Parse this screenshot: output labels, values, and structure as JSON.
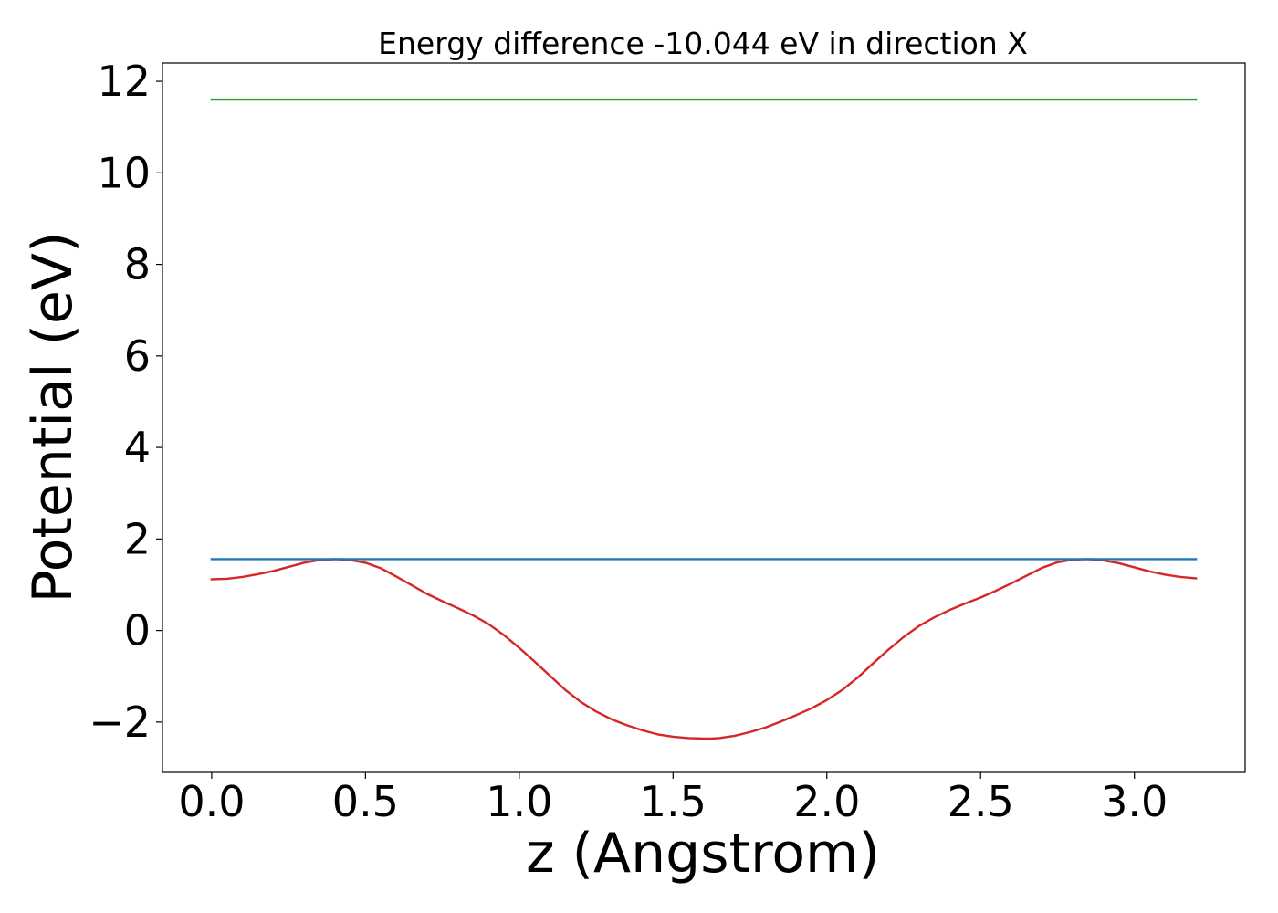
{
  "chart_data": {
    "type": "line",
    "title": "Energy difference -10.044 eV in direction X",
    "xlabel": "z (Angstrom)",
    "ylabel": "Potential (eV)",
    "xlim": [
      -0.16,
      3.36
    ],
    "ylim": [
      -3.1,
      12.4
    ],
    "grid": false,
    "legend": "none",
    "xticks": [
      {
        "value": 0.0,
        "label": "0.0"
      },
      {
        "value": 0.5,
        "label": "0.5"
      },
      {
        "value": 1.0,
        "label": "1.0"
      },
      {
        "value": 1.5,
        "label": "1.5"
      },
      {
        "value": 2.0,
        "label": "2.0"
      },
      {
        "value": 2.5,
        "label": "2.5"
      },
      {
        "value": 3.0,
        "label": "3.0"
      }
    ],
    "yticks": [
      {
        "value": -2,
        "label": "−2"
      },
      {
        "value": 0,
        "label": "0"
      },
      {
        "value": 2,
        "label": "2"
      },
      {
        "value": 4,
        "label": "4"
      },
      {
        "value": 6,
        "label": "6"
      },
      {
        "value": 8,
        "label": "8"
      },
      {
        "value": 10,
        "label": "10"
      },
      {
        "value": 12,
        "label": "12"
      }
    ],
    "series": [
      {
        "color": "#d62728",
        "x": [
          0.0,
          0.05,
          0.1,
          0.15,
          0.2,
          0.25,
          0.3,
          0.35,
          0.4,
          0.45,
          0.5,
          0.55,
          0.6,
          0.65,
          0.7,
          0.75,
          0.8,
          0.85,
          0.9,
          0.95,
          1.0,
          1.05,
          1.1,
          1.15,
          1.2,
          1.25,
          1.3,
          1.35,
          1.4,
          1.45,
          1.5,
          1.55,
          1.6,
          1.625,
          1.65,
          1.7,
          1.75,
          1.8,
          1.85,
          1.9,
          1.95,
          2.0,
          2.05,
          2.1,
          2.15,
          2.2,
          2.25,
          2.3,
          2.35,
          2.4,
          2.45,
          2.5,
          2.55,
          2.6,
          2.65,
          2.7,
          2.75,
          2.8,
          2.85,
          2.9,
          2.95,
          3.0,
          3.05,
          3.1,
          3.15,
          3.2
        ],
        "y": [
          1.12,
          1.13,
          1.17,
          1.23,
          1.3,
          1.39,
          1.48,
          1.54,
          1.56,
          1.54,
          1.48,
          1.36,
          1.18,
          0.99,
          0.8,
          0.64,
          0.49,
          0.33,
          0.14,
          -0.1,
          -0.38,
          -0.68,
          -0.99,
          -1.3,
          -1.56,
          -1.77,
          -1.94,
          -2.07,
          -2.18,
          -2.27,
          -2.32,
          -2.35,
          -2.36,
          -2.36,
          -2.35,
          -2.3,
          -2.22,
          -2.12,
          -1.99,
          -1.85,
          -1.7,
          -1.52,
          -1.3,
          -1.03,
          -0.72,
          -0.42,
          -0.14,
          0.1,
          0.29,
          0.45,
          0.59,
          0.72,
          0.87,
          1.03,
          1.2,
          1.37,
          1.49,
          1.55,
          1.56,
          1.53,
          1.47,
          1.38,
          1.29,
          1.22,
          1.17,
          1.14
        ]
      },
      {
        "color": "#1f77b4",
        "x": [
          0.0,
          3.2
        ],
        "y": [
          1.56,
          1.56
        ]
      },
      {
        "color": "#2ca02c",
        "x": [
          0.0,
          3.2
        ],
        "y": [
          11.6,
          11.6
        ]
      }
    ]
  }
}
